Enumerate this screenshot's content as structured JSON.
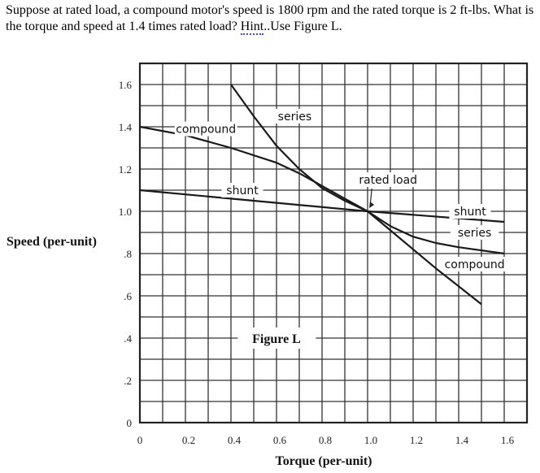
{
  "question": {
    "before_hint": "Suppose at rated load, a compound motor's speed is 1800 rpm and the rated torque is 2 ft-lbs. What is the torque and speed at 1.4 times rated load? ",
    "hint_word": "Hint",
    "after_hint": "..Use Figure L."
  },
  "chart_data": {
    "type": "line",
    "title": "",
    "caption": "Figure L",
    "xlabel": "Torque (per-unit)",
    "ylabel": "Speed (per-unit)",
    "xlim": [
      0,
      1.7
    ],
    "ylim": [
      0,
      1.7
    ],
    "grid": true,
    "x_ticks": [
      0,
      0.2,
      0.4,
      0.6,
      0.8,
      1.0,
      1.2,
      1.4,
      1.6
    ],
    "x_tick_labels": [
      "0",
      "0.2",
      "0.4",
      "0.6",
      "0.8",
      "1.0",
      "1.2",
      "1.4",
      "1.6"
    ],
    "y_ticks": [
      0,
      0.2,
      0.4,
      0.6,
      0.8,
      1.0,
      1.2,
      1.4,
      1.6
    ],
    "y_tick_labels": [
      "0",
      ".2",
      ".4",
      ".6",
      ".8",
      "1.0",
      "1.2",
      "1.4",
      "1.6"
    ],
    "series": [
      {
        "name": "series",
        "points": [
          [
            0.4,
            1.6
          ],
          [
            0.5,
            1.45
          ],
          [
            0.6,
            1.31
          ],
          [
            0.7,
            1.2
          ],
          [
            0.8,
            1.11
          ],
          [
            0.9,
            1.05
          ],
          [
            1.0,
            1.0
          ],
          [
            1.1,
            0.91
          ],
          [
            1.2,
            0.82
          ],
          [
            1.3,
            0.73
          ],
          [
            1.4,
            0.645
          ],
          [
            1.5,
            0.56
          ]
        ]
      },
      {
        "name": "compound",
        "points": [
          [
            0,
            1.4
          ],
          [
            0.2,
            1.36
          ],
          [
            0.4,
            1.3
          ],
          [
            0.6,
            1.23
          ],
          [
            0.7,
            1.18
          ],
          [
            0.8,
            1.12
          ],
          [
            0.9,
            1.06
          ],
          [
            1.0,
            1.0
          ],
          [
            1.1,
            0.93
          ],
          [
            1.2,
            0.88
          ],
          [
            1.3,
            0.85
          ],
          [
            1.4,
            0.83
          ],
          [
            1.6,
            0.8
          ]
        ]
      },
      {
        "name": "shunt",
        "points": [
          [
            0,
            1.1
          ],
          [
            0.5,
            1.05
          ],
          [
            1.0,
            1.0
          ],
          [
            1.6,
            0.95
          ]
        ]
      }
    ],
    "annotations": [
      {
        "text": "compound",
        "x": 0.29,
        "y": 1.39,
        "anchor_x": 0.0,
        "anchor_y": 1.4
      },
      {
        "text": "series",
        "x": 0.68,
        "y": 1.45
      },
      {
        "text": "shunt",
        "x": 0.45,
        "y": 1.1
      },
      {
        "text": "rated load",
        "x": 1.09,
        "y": 1.15,
        "arrow_to": [
          1.0,
          1.0
        ]
      },
      {
        "text": "shunt",
        "x": 1.45,
        "y": 1.0
      },
      {
        "text": "series",
        "x": 1.47,
        "y": 0.9
      },
      {
        "text": "compound",
        "x": 1.47,
        "y": 0.75
      }
    ]
  }
}
